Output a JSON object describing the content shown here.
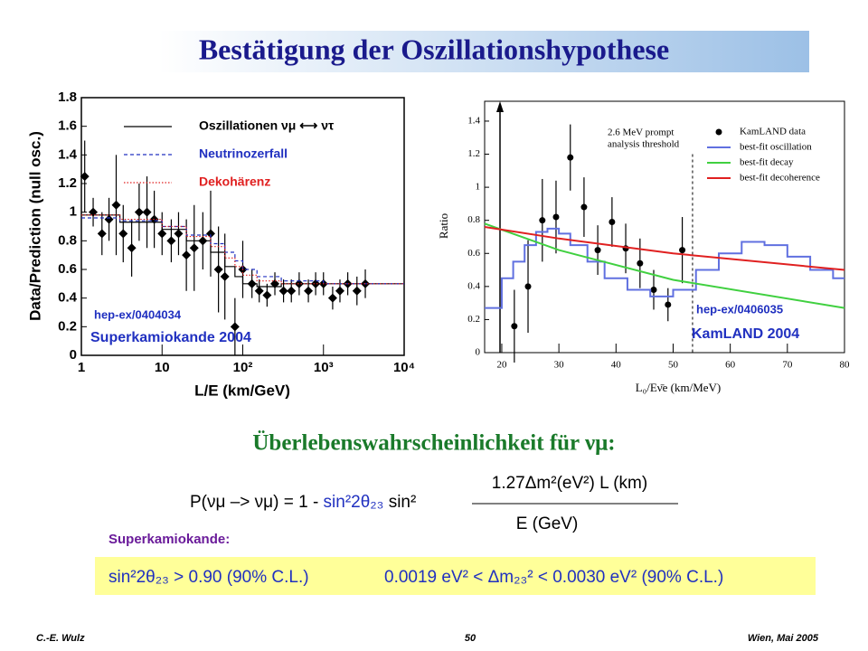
{
  "title": "Bestätigung der Oszillationshypothese",
  "chart_data": [
    {
      "type": "scatter",
      "xlog": true,
      "xlabel": "L/E (km/GeV)",
      "ylabel": "Data/Prediction (null osc.)",
      "xlim": [
        1,
        10000
      ],
      "ylim": [
        0,
        1.8
      ],
      "xticks": [
        1,
        10,
        {
          "value": 100,
          "label": "10²"
        },
        {
          "value": 1000,
          "label": "10³"
        },
        {
          "value": 10000,
          "label": "10⁴"
        }
      ],
      "yticks": [
        0,
        0.2,
        0.4,
        0.6,
        0.8,
        1,
        1.2,
        1.4,
        1.6,
        1.8
      ],
      "annotations": [
        "hep-ex/0404034",
        "Superkamiokande 2004"
      ],
      "series": [
        {
          "kind": "errorbar",
          "color": "#000000",
          "x": [
            1.1,
            1.4,
            1.8,
            2.2,
            2.7,
            3.3,
            4.2,
            5.2,
            6.5,
            8,
            10,
            13,
            16,
            20,
            25,
            32,
            40,
            50,
            60,
            80,
            100,
            130,
            160,
            200,
            250,
            320,
            400,
            500,
            650,
            800,
            1000,
            1300,
            1600,
            2000,
            2600,
            3300
          ],
          "values": [
            1.25,
            1.0,
            0.85,
            0.95,
            1.05,
            0.85,
            0.75,
            1.0,
            1.0,
            0.95,
            0.85,
            0.8,
            0.85,
            0.7,
            0.75,
            0.8,
            0.85,
            0.6,
            0.55,
            0.2,
            0.6,
            0.5,
            0.45,
            0.42,
            0.5,
            0.45,
            0.45,
            0.5,
            0.45,
            0.5,
            0.5,
            0.4,
            0.45,
            0.5,
            0.45,
            0.5
          ],
          "errors": [
            0.25,
            0.1,
            0.15,
            0.15,
            0.35,
            0.2,
            0.2,
            0.2,
            0.25,
            0.2,
            0.15,
            0.15,
            0.15,
            0.25,
            0.3,
            0.2,
            0.3,
            0.3,
            0.3,
            0.2,
            0.2,
            0.1,
            0.08,
            0.08,
            0.08,
            0.08,
            0.08,
            0.08,
            0.08,
            0.08,
            0.08,
            0.08,
            0.08,
            0.08,
            0.1,
            0.1
          ]
        },
        {
          "kind": "step",
          "name": "Oszillationen νμ ⟷ ντ",
          "color": "#000000",
          "dash": "solid",
          "x": [
            1,
            3,
            10,
            20,
            40,
            60,
            80,
            100,
            150,
            300,
            1000,
            10000
          ],
          "values": [
            0.98,
            0.97,
            0.93,
            0.88,
            0.8,
            0.72,
            0.62,
            0.55,
            0.5,
            0.48,
            0.5,
            0.5
          ]
        },
        {
          "kind": "step",
          "name": "Neutrinozerfall",
          "color": "#2030c0",
          "dash": "dashed",
          "x": [
            1,
            3,
            10,
            20,
            40,
            60,
            80,
            100,
            150,
            300,
            1000,
            10000
          ],
          "values": [
            0.96,
            0.96,
            0.94,
            0.9,
            0.84,
            0.78,
            0.72,
            0.66,
            0.6,
            0.55,
            0.52,
            0.5
          ]
        },
        {
          "kind": "step",
          "name": "Dekohärenz",
          "color": "#e02020",
          "dash": "dotted",
          "x": [
            1,
            3,
            10,
            20,
            40,
            60,
            80,
            100,
            150,
            300,
            1000,
            10000
          ],
          "values": [
            0.98,
            0.97,
            0.95,
            0.9,
            0.83,
            0.76,
            0.68,
            0.62,
            0.56,
            0.52,
            0.5,
            0.5
          ]
        }
      ]
    },
    {
      "type": "scatter",
      "xlog": false,
      "xlabel": "L₀/Eν̄e (km/MeV)",
      "ylabel": "Ratio",
      "xlim": [
        17,
        80
      ],
      "ylim": [
        0,
        1.52
      ],
      "xticks": [
        20,
        30,
        40,
        50,
        60,
        70,
        80
      ],
      "yticks": [
        0,
        0.2,
        0.4,
        0.6,
        0.8,
        1,
        1.2,
        1.4
      ],
      "threshold": 53.4,
      "annotations": [
        "2.6 MeV prompt",
        "analysis threshold",
        "hep-ex/0406035",
        "KamLAND 2004"
      ],
      "series": [
        {
          "kind": "errorbar",
          "name": "KamLAND data",
          "color": "#000000",
          "x": [
            22.2,
            24.6,
            27.1,
            29.5,
            32.0,
            34.4,
            36.8,
            39.3,
            41.7,
            44.2,
            46.6,
            49.1,
            51.6
          ],
          "values": [
            0.16,
            0.4,
            0.8,
            0.82,
            1.18,
            0.88,
            0.62,
            0.79,
            0.63,
            0.54,
            0.38,
            0.29,
            0.62
          ],
          "errors": [
            0.22,
            0.28,
            0.25,
            0.22,
            0.2,
            0.18,
            0.15,
            0.15,
            0.15,
            0.15,
            0.12,
            0.1,
            0.2
          ]
        },
        {
          "kind": "step",
          "name": "best-fit oscillation",
          "color": "#6070e0",
          "dash": "solid",
          "x": [
            17,
            20,
            22,
            24,
            26,
            28,
            30,
            32,
            35,
            38,
            42,
            46,
            50,
            54,
            58,
            62,
            66,
            70,
            74,
            78,
            80
          ],
          "values": [
            0.27,
            0.33,
            0.45,
            0.55,
            0.65,
            0.73,
            0.75,
            0.72,
            0.65,
            0.55,
            0.45,
            0.38,
            0.34,
            0.38,
            0.5,
            0.6,
            0.67,
            0.65,
            0.58,
            0.5,
            0.45
          ]
        },
        {
          "kind": "line",
          "name": "best-fit decay",
          "color": "#40d040",
          "dash": "solid",
          "x": [
            17,
            30,
            50,
            80
          ],
          "values": [
            0.78,
            0.62,
            0.44,
            0.27
          ]
        },
        {
          "kind": "line",
          "name": "best-fit decoherence",
          "color": "#e02020",
          "dash": "solid",
          "x": [
            17,
            30,
            50,
            80
          ],
          "values": [
            0.76,
            0.69,
            0.6,
            0.5
          ]
        }
      ]
    }
  ],
  "survival": {
    "heading": "Überlebenswahrscheinlichkeit für νμ:",
    "lhs": "P(νμ –> νμ) = 1 - ",
    "mixing": "sin²2θ₂₃",
    "sin2": " sin²",
    "numerator": "1.27Δm²(eV²) L (km)",
    "denominator": "E (GeV)"
  },
  "result": {
    "label": "Superkamiokande:",
    "mixing": "sin²2θ₂₃ > 0.90 (90% C.L.)",
    "mass": "0.0019 eV² < Δm₂₃² < 0.0030 eV² (90% C.L.)"
  },
  "footer": {
    "author": "C.-E. Wulz",
    "page": "50",
    "place": "Wien, Mai 2005"
  }
}
